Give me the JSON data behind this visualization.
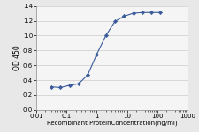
{
  "x": [
    0.031,
    0.0625,
    0.125,
    0.25,
    0.5,
    1,
    2,
    4,
    8,
    16,
    32,
    64,
    128
  ],
  "y": [
    0.31,
    0.3,
    0.33,
    0.35,
    0.47,
    0.75,
    1.0,
    1.19,
    1.26,
    1.3,
    1.31,
    1.31,
    1.31
  ],
  "line_color": "#3a5a9a",
  "marker": "D",
  "marker_size": 2.2,
  "marker_facecolor": "#3a5a9a",
  "xlabel": "Recombinant ProteinConcentration(ng/ml)",
  "ylabel": "OD 450",
  "xlim": [
    0.01,
    1000
  ],
  "ylim": [
    0,
    1.4
  ],
  "yticks": [
    0,
    0.2,
    0.4,
    0.6,
    0.8,
    1.0,
    1.2,
    1.4
  ],
  "xticks": [
    0.01,
    0.1,
    1,
    10,
    100,
    1000
  ],
  "xlabel_fontsize": 5.0,
  "ylabel_fontsize": 5.5,
  "tick_fontsize": 5.0,
  "fig_facecolor": "#e8e8e8",
  "plot_facecolor": "#f5f5f5",
  "grid_color": "#cccccc"
}
